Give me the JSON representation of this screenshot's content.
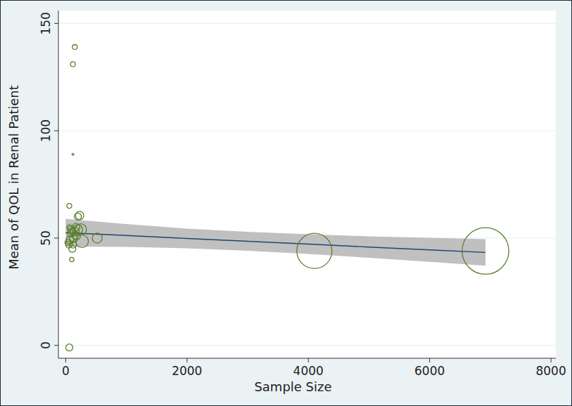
{
  "chart_data": {
    "type": "scatter",
    "x_label": "Sample Size",
    "y_label": "Mean of QOL in Renal Patient",
    "xlim": [
      -120,
      8080
    ],
    "ylim": [
      -6,
      156
    ],
    "xticks": [
      0,
      2000,
      4000,
      6000,
      8000
    ],
    "yticks": [
      0,
      50,
      100,
      150
    ],
    "grid": true,
    "series": [
      {
        "type": "scatter",
        "marker": "hollow-circle",
        "color": "#5a7f2b",
        "x": [
          150,
          120,
          120,
          60,
          100,
          60,
          40,
          55,
          70,
          80,
          60,
          90,
          110,
          130,
          120,
          110,
          150,
          170,
          200,
          180,
          200,
          230,
          250,
          270,
          520,
          4100,
          6920
        ],
        "values": [
          139,
          131,
          89,
          65,
          40,
          -1,
          48,
          47,
          49,
          52,
          55,
          54,
          53,
          50,
          47,
          45,
          53,
          55,
          54,
          51,
          60,
          60.5,
          54,
          48.5,
          50,
          44,
          44
        ],
        "sizes": [
          12,
          12,
          2,
          12,
          10,
          25,
          20,
          25,
          30,
          20,
          12,
          25,
          30,
          35,
          25,
          25,
          40,
          30,
          45,
          30,
          25,
          35,
          64,
          81,
          49,
          625,
          1100
        ]
      },
      {
        "type": "line",
        "line_style": "solid",
        "color": "#1a476f",
        "x": [
          0,
          1000,
          2000,
          3000,
          4000,
          5000,
          6000,
          6920
        ],
        "values": [
          52.5,
          51.2,
          49.8,
          48.5,
          47.2,
          45.8,
          44.5,
          43.3
        ],
        "ci_lower": [
          46,
          45.9,
          45.2,
          44.1,
          42.6,
          40.8,
          38.9,
          37.1
        ],
        "ci_upper": [
          59,
          56.5,
          54.4,
          52.9,
          51.8,
          50.8,
          50.1,
          49.5
        ]
      }
    ]
  }
}
